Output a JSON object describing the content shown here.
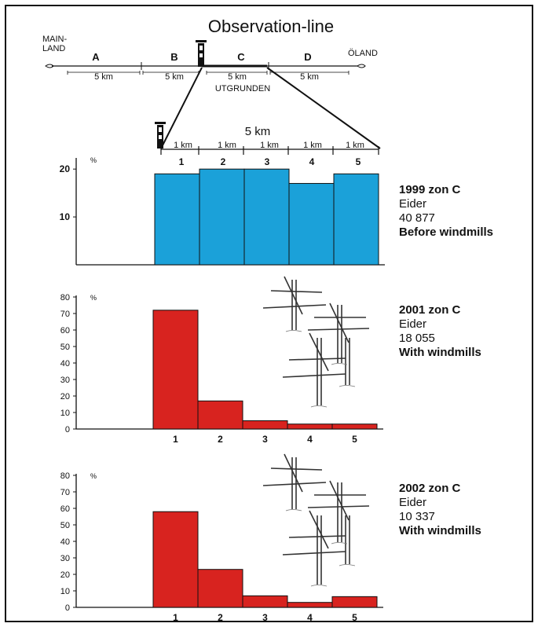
{
  "diagram": {
    "title": "Observation-line",
    "left_coast": [
      "MAIN-",
      "LAND"
    ],
    "right_coast": "ÖLAND",
    "segments": [
      {
        "name": "A",
        "distance": "5 km"
      },
      {
        "name": "B",
        "distance": "5 km"
      },
      {
        "name": "C",
        "distance": "5 km"
      },
      {
        "name": "D",
        "distance": "5 km"
      }
    ],
    "area_label": "UTGRUNDEN",
    "zoom_total": "5 km",
    "zoom_sub": [
      "1 km",
      "1 km",
      "1 km",
      "1 km",
      "1 km"
    ],
    "zoom_numbers": [
      "1",
      "2",
      "3",
      "4",
      "5"
    ]
  },
  "chart_data": [
    {
      "type": "bar",
      "categories": [
        "1",
        "2",
        "3",
        "4",
        "5"
      ],
      "values": [
        19,
        20,
        20,
        17,
        19
      ],
      "ylim": [
        0,
        22
      ],
      "yticks": [
        10,
        20
      ],
      "ylabel": "%",
      "color": "#1ba1d9",
      "show_x_tick_labels": false,
      "info": {
        "title": "1999 zon C",
        "species": "Eider",
        "count": "40 877",
        "note": "Before windmills"
      }
    },
    {
      "type": "bar",
      "categories": [
        "1",
        "2",
        "3",
        "4",
        "5"
      ],
      "values": [
        72,
        17,
        5,
        3,
        3
      ],
      "ylim": [
        0,
        80
      ],
      "yticks": [
        0,
        10,
        20,
        30,
        40,
        50,
        60,
        70,
        80
      ],
      "ylabel": "%",
      "color": "#d8231f",
      "show_x_tick_labels": true,
      "info": {
        "title": "2001 zon C",
        "species": "Eider",
        "count": "18 055",
        "note": "With windmills"
      }
    },
    {
      "type": "bar",
      "categories": [
        "1",
        "2",
        "3",
        "4",
        "5"
      ],
      "values": [
        58,
        23,
        7,
        3,
        6.5
      ],
      "ylim": [
        0,
        80
      ],
      "yticks": [
        0,
        10,
        20,
        30,
        40,
        50,
        60,
        70,
        80
      ],
      "ylabel": "%",
      "color": "#d8231f",
      "show_x_tick_labels": true,
      "info": {
        "title": "2002 zon C",
        "species": "Eider",
        "count": "10 337",
        "note": "With windmills"
      }
    }
  ]
}
